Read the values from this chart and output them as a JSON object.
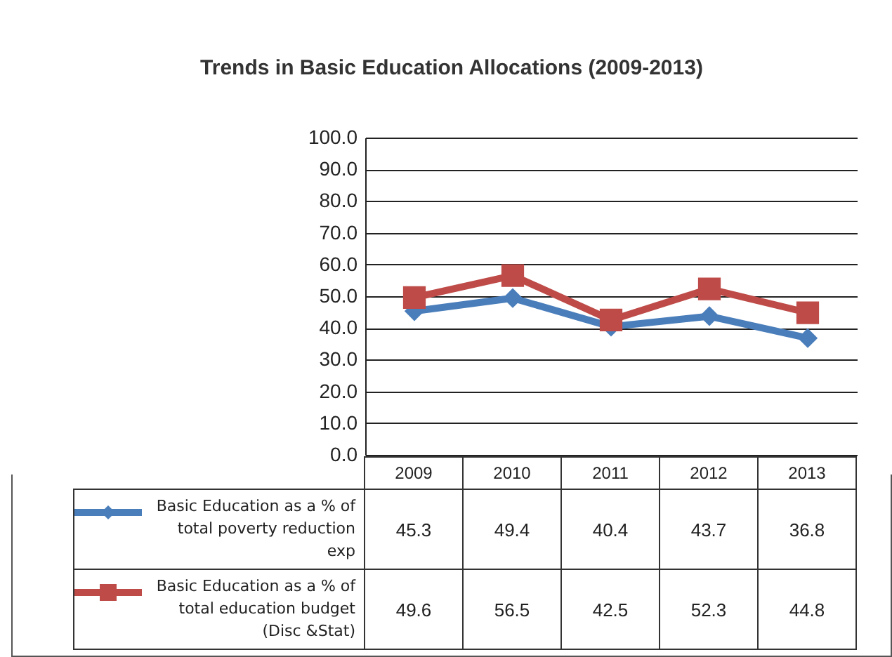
{
  "chart_data": {
    "type": "line",
    "title": "Trends in Basic Education Allocations (2009-2013)",
    "categories": [
      "2009",
      "2010",
      "2011",
      "2012",
      "2013"
    ],
    "series": [
      {
        "name": "Basic Education as a % of total poverty reduction exp",
        "color": "#4a7ebb",
        "marker": "diamond",
        "values": [
          45.3,
          49.4,
          40.4,
          43.7,
          36.8
        ]
      },
      {
        "name": "Basic Education as a % of total education budget (Disc &Stat)",
        "color": "#be4b48",
        "marker": "square",
        "values": [
          49.6,
          56.5,
          42.5,
          52.3,
          44.8
        ]
      }
    ],
    "ylim": [
      0,
      100
    ],
    "yticks": [
      {
        "value": 0,
        "label": "0.0"
      },
      {
        "value": 10,
        "label": "10.0"
      },
      {
        "value": 20,
        "label": "20.0"
      },
      {
        "value": 30,
        "label": "30.0"
      },
      {
        "value": 40,
        "label": "40.0"
      },
      {
        "value": 50,
        "label": "50.0"
      },
      {
        "value": 60,
        "label": "60.0"
      },
      {
        "value": 70,
        "label": "70.0"
      },
      {
        "value": 80,
        "label": "80.0"
      },
      {
        "value": 90,
        "label": "90.0"
      },
      {
        "value": 100,
        "label": "100.0"
      }
    ],
    "grid": "y",
    "legend": "bottom left",
    "data_labels": true,
    "line_style": "solid"
  }
}
